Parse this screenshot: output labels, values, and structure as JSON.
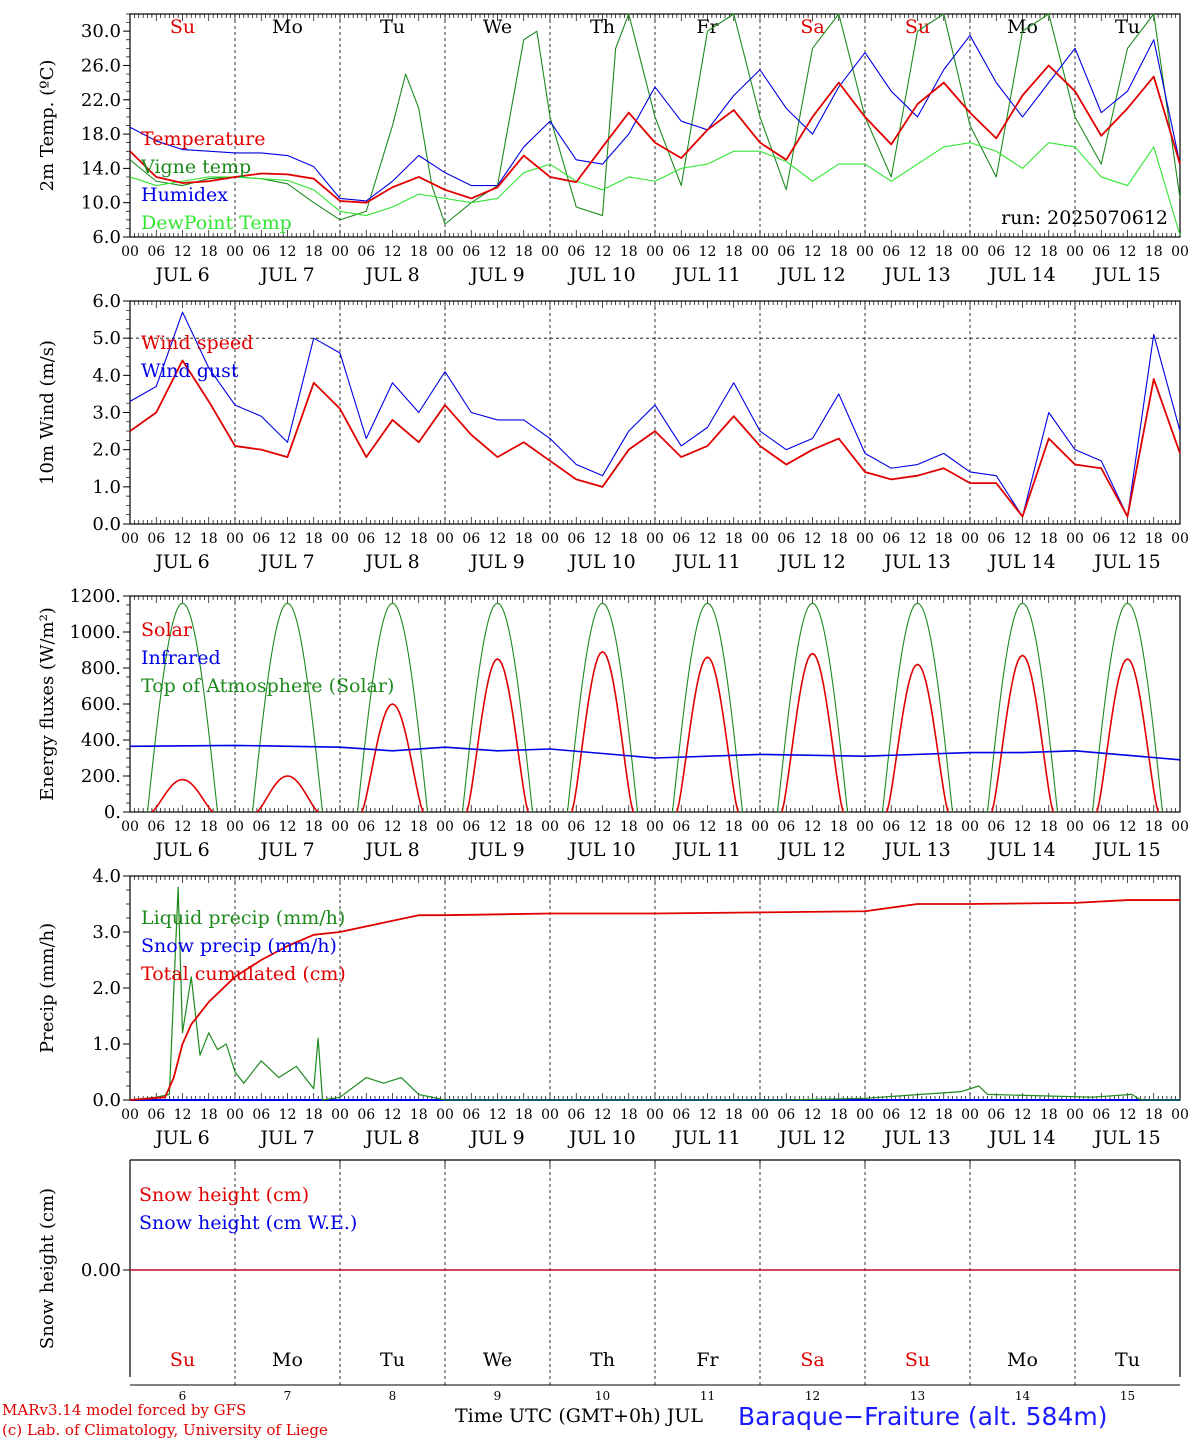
{
  "credit": {
    "line1": "MARv3.14 model forced by GFS",
    "line2": "(c) Lab. of Climatology, University of Liege"
  },
  "x_axis_title": "Time UTC (GMT+0h) JUL",
  "station": "Baraque−Fraiture (alt. 584m)",
  "colors": {
    "red": "#e00000",
    "blue": "#0000e6",
    "green": "#1e8a1e",
    "lightgreen": "#33e633",
    "weekend": "#e00000",
    "weekday": "#000000"
  },
  "days": [
    {
      "name": "Su",
      "date": "JUL  6",
      "num": "6",
      "weekend": true
    },
    {
      "name": "Mo",
      "date": "JUL  7",
      "num": "7",
      "weekend": false
    },
    {
      "name": "Tu",
      "date": "JUL  8",
      "num": "8",
      "weekend": false
    },
    {
      "name": "We",
      "date": "JUL  9",
      "num": "9",
      "weekend": false
    },
    {
      "name": "Th",
      "date": "JUL 10",
      "num": "10",
      "weekend": false
    },
    {
      "name": "Fr",
      "date": "JUL 11",
      "num": "11",
      "weekend": false
    },
    {
      "name": "Sa",
      "date": "JUL 12",
      "num": "12",
      "weekend": true
    },
    {
      "name": "Su",
      "date": "JUL 13",
      "num": "13",
      "weekend": true
    },
    {
      "name": "Mo",
      "date": "JUL 14",
      "num": "14",
      "weekend": false
    },
    {
      "name": "Tu",
      "date": "JUL 15",
      "num": "15",
      "weekend": false
    }
  ],
  "hour_ticks": [
    "00",
    "06",
    "12",
    "18"
  ],
  "chart_data": [
    {
      "id": "temp",
      "type": "line",
      "ylabel": "2m Temp. (ºC)",
      "ylim": [
        6,
        32
      ],
      "yticks": [
        "6.0",
        "10.0",
        "14.0",
        "18.0",
        "22.0",
        "26.0",
        "30.0"
      ],
      "ytick_values": [
        6,
        10,
        14,
        18,
        22,
        26,
        30
      ],
      "annotation": "run: 2025070612",
      "x_unit": "hours since JUL 6 00 UTC",
      "series": [
        {
          "name": "Temperature",
          "color": "#e00000",
          "x": [
            0,
            6,
            12,
            18,
            24,
            30,
            36,
            42,
            48,
            54,
            60,
            66,
            72,
            78,
            84,
            90,
            96,
            102,
            108,
            114,
            120,
            126,
            132,
            138,
            144,
            150,
            156,
            162,
            168,
            174,
            180,
            186,
            192,
            198,
            204,
            210,
            216,
            222,
            228,
            234,
            240
          ],
          "values": [
            16,
            13,
            12.3,
            12.5,
            13,
            13.4,
            13.3,
            12.8,
            10.2,
            10,
            11.8,
            13,
            11.5,
            10.5,
            11.8,
            15.5,
            13,
            12.4,
            16.5,
            20.5,
            17,
            15.2,
            18.5,
            20.8,
            17,
            15,
            20,
            24,
            20,
            16.8,
            21.5,
            24,
            20.5,
            17.5,
            22.5,
            26,
            23,
            17.8,
            21,
            24.7,
            14.5
          ]
        },
        {
          "name": "Vigne temp",
          "color": "#1e8a1e",
          "x": [
            0,
            6,
            12,
            18,
            24,
            30,
            36,
            42,
            48,
            54,
            60,
            63,
            66,
            69,
            72,
            78,
            84,
            90,
            93,
            96,
            102,
            108,
            111,
            114,
            120,
            126,
            132,
            138,
            144,
            150,
            156,
            162,
            168,
            174,
            180,
            186,
            192,
            198,
            204,
            210,
            216,
            222,
            228,
            234,
            240
          ],
          "values": [
            15,
            12.5,
            12,
            12.8,
            13,
            12.8,
            12.2,
            10,
            8,
            9,
            19,
            25,
            21,
            12,
            7.5,
            10,
            12,
            29,
            30,
            20,
            9.5,
            8.5,
            28,
            32,
            20,
            12,
            30,
            32,
            20,
            11.5,
            28,
            32,
            20,
            13,
            30,
            32,
            19,
            13,
            30,
            32,
            20,
            14.5,
            28,
            32,
            10.5
          ]
        },
        {
          "name": "Humidex",
          "color": "#0000e6",
          "x": [
            0,
            6,
            12,
            18,
            24,
            30,
            36,
            42,
            48,
            54,
            60,
            66,
            72,
            78,
            84,
            90,
            96,
            102,
            108,
            114,
            120,
            126,
            132,
            138,
            144,
            150,
            156,
            162,
            168,
            174,
            180,
            186,
            192,
            198,
            204,
            210,
            216,
            222,
            228,
            234,
            240
          ],
          "values": [
            18.8,
            17.2,
            16.2,
            16,
            15.8,
            15.8,
            15.5,
            14.2,
            10.5,
            10.2,
            12.5,
            15.5,
            13.5,
            12,
            12,
            16.5,
            19.5,
            15,
            14.5,
            18,
            23.5,
            19.5,
            18.5,
            22.5,
            25.5,
            21,
            18,
            23.5,
            27.5,
            23,
            20,
            25.5,
            29.5,
            24,
            20,
            24,
            28,
            20.5,
            23,
            29,
            14.5
          ]
        },
        {
          "name": "DewPoint Temp",
          "color": "#33e633",
          "x": [
            0,
            6,
            12,
            18,
            24,
            30,
            36,
            42,
            48,
            54,
            60,
            66,
            72,
            78,
            84,
            90,
            96,
            102,
            108,
            114,
            120,
            126,
            132,
            138,
            144,
            150,
            156,
            162,
            168,
            174,
            180,
            186,
            192,
            198,
            204,
            210,
            216,
            222,
            228,
            234,
            240
          ],
          "values": [
            13,
            12,
            12.5,
            13,
            13,
            12.8,
            12.6,
            11.5,
            9,
            8.5,
            9.5,
            11,
            10.5,
            10,
            10.5,
            13.5,
            14.5,
            12.5,
            11.5,
            13,
            12.5,
            14,
            14.5,
            16,
            16,
            14.8,
            12.5,
            14.5,
            14.5,
            12.5,
            14.5,
            16.5,
            17,
            16,
            14,
            17,
            16.5,
            13,
            12,
            16.5,
            6.2
          ]
        }
      ]
    },
    {
      "id": "wind",
      "type": "line",
      "ylabel": "10m Wind (m/s)",
      "ylim": [
        0,
        6
      ],
      "yticks": [
        "0.0",
        "1.0",
        "2.0",
        "3.0",
        "4.0",
        "5.0",
        "6.0"
      ],
      "ytick_values": [
        0,
        1,
        2,
        3,
        4,
        5,
        6
      ],
      "dashed_reference_y": 5,
      "x_unit": "hours since JUL 6 00 UTC",
      "series": [
        {
          "name": "Wind speed",
          "color": "#e00000",
          "x": [
            0,
            6,
            12,
            18,
            24,
            30,
            36,
            42,
            48,
            54,
            60,
            66,
            72,
            78,
            84,
            90,
            96,
            102,
            108,
            114,
            120,
            126,
            132,
            138,
            144,
            150,
            156,
            162,
            168,
            174,
            180,
            186,
            192,
            198,
            204,
            210,
            216,
            222,
            228,
            234,
            240
          ],
          "values": [
            2.5,
            3,
            4.4,
            3.3,
            2.1,
            2,
            1.8,
            3.8,
            3.1,
            1.8,
            2.8,
            2.2,
            3.2,
            2.4,
            1.8,
            2.2,
            1.7,
            1.2,
            1,
            2,
            2.5,
            1.8,
            2.1,
            2.9,
            2.1,
            1.6,
            2,
            2.3,
            1.4,
            1.2,
            1.3,
            1.5,
            1.1,
            1.1,
            0.2,
            2.3,
            1.6,
            1.5,
            0.2,
            3.9,
            1.9
          ]
        },
        {
          "name": "Wind gust",
          "color": "#0000e6",
          "x": [
            0,
            6,
            12,
            18,
            24,
            30,
            36,
            42,
            48,
            54,
            60,
            66,
            72,
            78,
            84,
            90,
            96,
            102,
            108,
            114,
            120,
            126,
            132,
            138,
            144,
            150,
            156,
            162,
            168,
            174,
            180,
            186,
            192,
            198,
            204,
            210,
            216,
            222,
            228,
            234,
            240
          ],
          "values": [
            3.3,
            3.7,
            5.7,
            4.2,
            3.2,
            2.9,
            2.2,
            5,
            4.6,
            2.3,
            3.8,
            3,
            4.1,
            3,
            2.8,
            2.8,
            2.3,
            1.6,
            1.3,
            2.5,
            3.2,
            2.1,
            2.6,
            3.8,
            2.5,
            2,
            2.3,
            3.5,
            1.9,
            1.5,
            1.6,
            1.9,
            1.4,
            1.3,
            0.2,
            3,
            2,
            1.7,
            0.2,
            5.1,
            2.5
          ]
        }
      ]
    },
    {
      "id": "energy",
      "type": "line",
      "ylabel": "Energy fluxes (W/m²)",
      "ylim": [
        0,
        1200
      ],
      "yticks": [
        "0.",
        "200.",
        "400.",
        "600.",
        "800.",
        "1000.",
        "1200."
      ],
      "ytick_values": [
        0,
        200,
        400,
        600,
        800,
        1000,
        1200
      ],
      "x_unit": "hours since JUL 6 00 UTC",
      "series": [
        {
          "name": "Solar",
          "color": "#e00000",
          "solar_peaks": [
            180,
            200,
            600,
            850,
            890,
            860,
            880,
            820,
            870,
            850
          ]
        },
        {
          "name": "Infrared",
          "color": "#0000e6",
          "x": [
            0,
            24,
            48,
            60,
            72,
            84,
            96,
            120,
            144,
            168,
            192,
            204,
            216,
            240
          ],
          "values": [
            365,
            370,
            360,
            340,
            360,
            340,
            350,
            300,
            320,
            310,
            330,
            330,
            340,
            290
          ]
        },
        {
          "name": "Top of Atmosphere (Solar)",
          "color": "#1e8a1e",
          "solar_peak": 1160,
          "sunrise_hour": 4,
          "sunset_hour": 20
        }
      ]
    },
    {
      "id": "precip",
      "type": "line",
      "ylabel": "Precip (mm/h)",
      "ylim": [
        0,
        4
      ],
      "yticks": [
        "0.0",
        "1.0",
        "2.0",
        "3.0",
        "4.0"
      ],
      "ytick_values": [
        0,
        1,
        2,
        3,
        4
      ],
      "x_unit": "hours since JUL 6 00 UTC",
      "series": [
        {
          "name": "Liquid precip (mm/h)",
          "color": "#1e8a1e",
          "x": [
            0,
            6,
            9,
            11,
            12,
            14,
            16,
            18,
            20,
            22,
            24,
            26,
            30,
            34,
            38,
            42,
            43,
            44,
            48,
            54,
            58,
            62,
            66,
            72,
            78,
            96,
            150,
            168,
            190,
            194,
            196,
            220,
            229,
            231,
            240
          ],
          "values": [
            0,
            0.05,
            0.1,
            3.8,
            1.2,
            2.2,
            0.8,
            1.2,
            0.9,
            1,
            0.5,
            0.3,
            0.7,
            0.4,
            0.6,
            0.2,
            1.1,
            0,
            0.05,
            0.4,
            0.3,
            0.4,
            0.1,
            0,
            0,
            0,
            0,
            0.03,
            0.15,
            0.25,
            0.1,
            0.05,
            0.1,
            0,
            0
          ]
        },
        {
          "name": "Snow precip (mm/h)",
          "color": "#0000e6",
          "x": [
            0,
            240
          ],
          "values": [
            0,
            0
          ]
        },
        {
          "name": "Total cumulated (cm)",
          "color": "#e00000",
          "x": [
            0,
            8,
            10,
            12,
            14,
            18,
            24,
            30,
            36,
            42,
            48,
            54,
            60,
            66,
            72,
            96,
            120,
            144,
            168,
            180,
            192,
            216,
            228,
            240
          ],
          "values": [
            0,
            0.05,
            0.4,
            1,
            1.35,
            1.75,
            2.2,
            2.5,
            2.75,
            2.95,
            3.0,
            3.1,
            3.2,
            3.3,
            3.3,
            3.33,
            3.33,
            3.35,
            3.37,
            3.5,
            3.5,
            3.52,
            3.57,
            3.57
          ]
        }
      ]
    },
    {
      "id": "snow",
      "type": "line",
      "ylabel": "Snow height (cm)",
      "yticks": [
        "0.00"
      ],
      "ytick_values": [
        0
      ],
      "x_unit": "hours since JUL 6 00 UTC",
      "series": [
        {
          "name": "Snow height (cm)",
          "color": "#e00000",
          "x": [
            0,
            240
          ],
          "values": [
            0,
            0
          ]
        },
        {
          "name": "Snow height (cm W.E.)",
          "color": "#0000e6",
          "x": [
            0,
            240
          ],
          "values": [
            0,
            0
          ]
        }
      ]
    }
  ]
}
